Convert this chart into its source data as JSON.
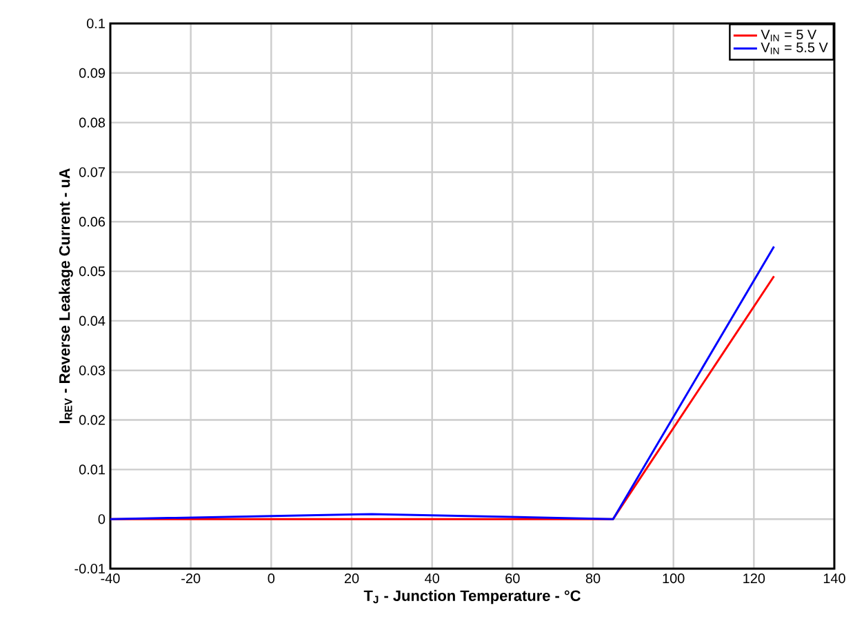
{
  "chart_data": {
    "type": "line",
    "xlabel": "**T$_{J}$ - Junction Temperature - °C**",
    "ylabel": "**I$_{REV}$ - Reverse Leakage Current - uA**",
    "x": [
      -40,
      25,
      85,
      125
    ],
    "series": [
      {
        "name": "V$_{IN}$ = 5 V",
        "color": "#ff0000",
        "values": [
          0,
          0,
          0,
          0.049
        ]
      },
      {
        "name": "V$_{IN}$ = 5.5 V",
        "color": "#0000ff",
        "values": [
          0,
          0.001,
          0,
          0.055
        ]
      }
    ],
    "xlim": [
      -40,
      140
    ],
    "xticks": [
      -40,
      -20,
      0,
      20,
      40,
      60,
      80,
      100,
      120,
      140
    ],
    "ylim": [
      -0.01,
      0.1
    ],
    "yticks": [
      -0.01,
      0,
      0.01,
      0.02,
      0.03,
      0.04,
      0.05,
      0.06,
      0.07,
      0.08,
      0.09,
      0.1
    ],
    "grid": true,
    "legend": "top right",
    "marker": "none",
    "line_style": "solid"
  }
}
